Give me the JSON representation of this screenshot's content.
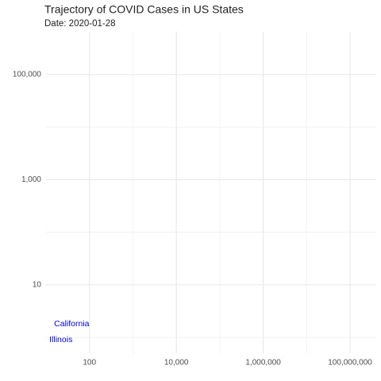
{
  "chart_data": {
    "type": "scatter",
    "title": "Trajectory of COVID Cases in US States",
    "subtitle": "Date: 2020-01-28",
    "series": [
      {
        "name": "California",
        "color": "#0000cc",
        "x": [
          39
        ],
        "values": [
          1.8
        ]
      },
      {
        "name": "Illinois",
        "color": "#0000cc",
        "x": [
          22
        ],
        "values": [
          0.9
        ]
      }
    ],
    "log_x": true,
    "log_y": true,
    "xlim": [
      10,
      400000000
    ],
    "ylim": [
      0.5,
      650000
    ],
    "xticks": [
      {
        "value": 100,
        "label": "100"
      },
      {
        "value": 10000,
        "label": "10,000"
      },
      {
        "value": 1000000,
        "label": "1,000,000"
      },
      {
        "value": 100000000,
        "label": "100,000,000"
      }
    ],
    "yticks": [
      {
        "value": 10,
        "label": "10"
      },
      {
        "value": 1000,
        "label": "1,000"
      },
      {
        "value": 100000,
        "label": "100,000"
      }
    ],
    "x_minor_ticks": [
      1000,
      100000,
      10000000
    ],
    "y_minor_ticks": [
      1,
      100,
      10000
    ],
    "grid": true
  }
}
